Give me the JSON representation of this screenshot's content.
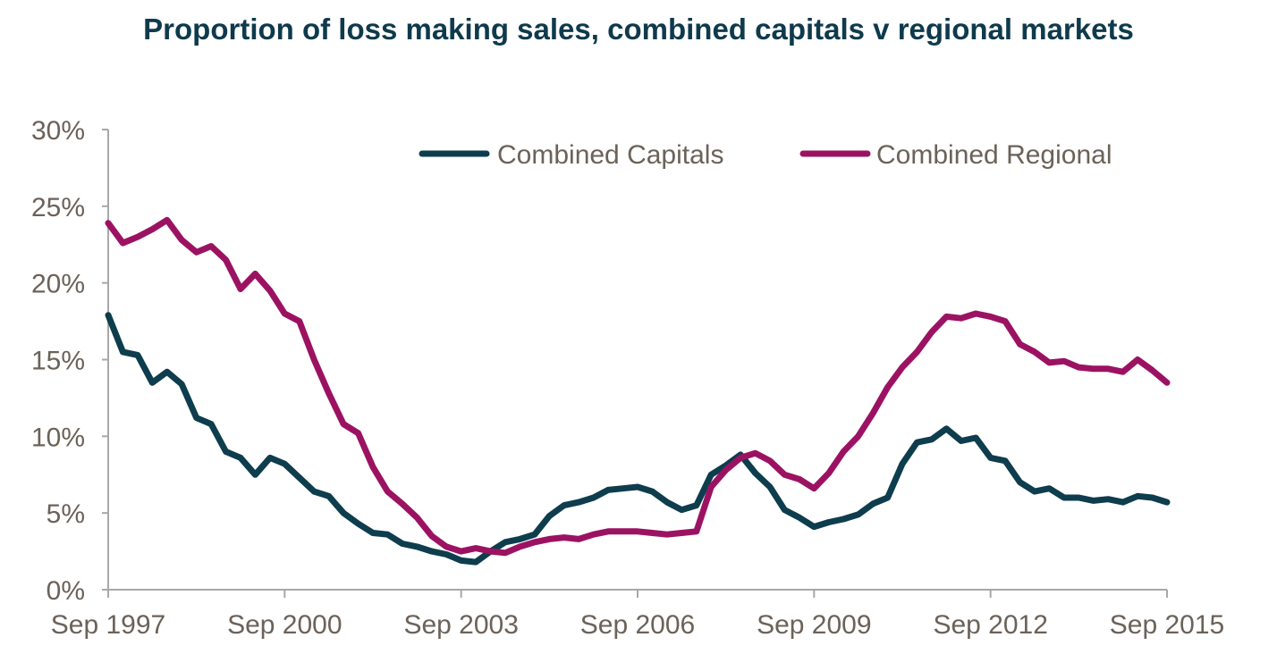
{
  "chart_data": {
    "type": "line",
    "title": "Proportion of loss making sales, combined capitals v regional markets",
    "xlabel": "",
    "ylabel": "",
    "x_range": [
      1997.75,
      2015.75
    ],
    "ylim": [
      0,
      30
    ],
    "y_ticks": [
      {
        "value": 0,
        "label": "0%"
      },
      {
        "value": 5,
        "label": "5%"
      },
      {
        "value": 10,
        "label": "10%"
      },
      {
        "value": 15,
        "label": "15%"
      },
      {
        "value": 20,
        "label": "20%"
      },
      {
        "value": 25,
        "label": "25%"
      },
      {
        "value": 30,
        "label": "30%"
      }
    ],
    "x_ticks": [
      {
        "value": 1997.75,
        "label": "Sep 1997"
      },
      {
        "value": 2000.75,
        "label": "Sep 2000"
      },
      {
        "value": 2003.75,
        "label": "Sep 2003"
      },
      {
        "value": 2006.75,
        "label": "Sep 2006"
      },
      {
        "value": 2009.75,
        "label": "Sep 2009"
      },
      {
        "value": 2012.75,
        "label": "Sep 2012"
      },
      {
        "value": 2015.75,
        "label": "Sep 2015"
      }
    ],
    "legend_position": "top-right",
    "series": [
      {
        "name": "Combined Capitals",
        "color": "#0e3d4d",
        "x": [
          1997.75,
          1998.0,
          1998.25,
          1998.5,
          1998.75,
          1999.0,
          1999.25,
          1999.5,
          1999.75,
          2000.0,
          2000.25,
          2000.5,
          2000.75,
          2001.0,
          2001.25,
          2001.5,
          2001.75,
          2002.0,
          2002.25,
          2002.5,
          2002.75,
          2003.0,
          2003.25,
          2003.5,
          2003.75,
          2004.0,
          2004.25,
          2004.5,
          2004.75,
          2005.0,
          2005.25,
          2005.5,
          2005.75,
          2006.0,
          2006.25,
          2006.5,
          2006.75,
          2007.0,
          2007.25,
          2007.5,
          2007.75,
          2008.0,
          2008.25,
          2008.5,
          2008.75,
          2009.0,
          2009.25,
          2009.5,
          2009.75,
          2010.0,
          2010.25,
          2010.5,
          2010.75,
          2011.0,
          2011.25,
          2011.5,
          2011.75,
          2012.0,
          2012.25,
          2012.5,
          2012.75,
          2013.0,
          2013.25,
          2013.5,
          2013.75,
          2014.0,
          2014.25,
          2014.5,
          2014.75,
          2015.0,
          2015.25,
          2015.5,
          2015.75
        ],
        "values": [
          17.9,
          15.5,
          15.3,
          13.5,
          14.2,
          13.4,
          11.2,
          10.8,
          9.0,
          8.6,
          7.5,
          8.6,
          8.2,
          7.3,
          6.4,
          6.1,
          5.0,
          4.3,
          3.7,
          3.6,
          3.0,
          2.8,
          2.5,
          2.3,
          1.9,
          1.8,
          2.5,
          3.1,
          3.3,
          3.6,
          4.8,
          5.5,
          5.7,
          6.0,
          6.5,
          6.6,
          6.7,
          6.4,
          5.7,
          5.2,
          5.5,
          7.5,
          8.1,
          8.8,
          7.6,
          6.7,
          5.2,
          4.7,
          4.1,
          4.4,
          4.6,
          4.9,
          5.6,
          6.0,
          8.2,
          9.6,
          9.8,
          10.5,
          9.7,
          9.9,
          8.6,
          8.4,
          7.0,
          6.4,
          6.6,
          6.0,
          6.0,
          5.8,
          5.9,
          5.7,
          6.1,
          6.0,
          5.7
        ]
      },
      {
        "name": "Combined Regional",
        "color": "#9c1262",
        "x": [
          1997.75,
          1998.0,
          1998.25,
          1998.5,
          1998.75,
          1999.0,
          1999.25,
          1999.5,
          1999.75,
          2000.0,
          2000.25,
          2000.5,
          2000.75,
          2001.0,
          2001.25,
          2001.5,
          2001.75,
          2002.0,
          2002.25,
          2002.5,
          2002.75,
          2003.0,
          2003.25,
          2003.5,
          2003.75,
          2004.0,
          2004.25,
          2004.5,
          2004.75,
          2005.0,
          2005.25,
          2005.5,
          2005.75,
          2006.0,
          2006.25,
          2006.5,
          2006.75,
          2007.0,
          2007.25,
          2007.5,
          2007.75,
          2008.0,
          2008.25,
          2008.5,
          2008.75,
          2009.0,
          2009.25,
          2009.5,
          2009.75,
          2010.0,
          2010.25,
          2010.5,
          2010.75,
          2011.0,
          2011.25,
          2011.5,
          2011.75,
          2012.0,
          2012.25,
          2012.5,
          2012.75,
          2013.0,
          2013.25,
          2013.5,
          2013.75,
          2014.0,
          2014.25,
          2014.5,
          2014.75,
          2015.0,
          2015.25,
          2015.5,
          2015.75
        ],
        "values": [
          23.9,
          22.6,
          23.0,
          23.5,
          24.1,
          22.8,
          22.0,
          22.4,
          21.5,
          19.6,
          20.6,
          19.5,
          18.0,
          17.5,
          15.0,
          12.8,
          10.8,
          10.2,
          8.0,
          6.4,
          5.6,
          4.7,
          3.5,
          2.8,
          2.5,
          2.7,
          2.5,
          2.4,
          2.8,
          3.1,
          3.3,
          3.4,
          3.3,
          3.6,
          3.8,
          3.8,
          3.8,
          3.7,
          3.6,
          3.7,
          3.8,
          6.7,
          7.8,
          8.6,
          8.9,
          8.4,
          7.5,
          7.2,
          6.6,
          7.6,
          9.0,
          10.0,
          11.5,
          13.2,
          14.5,
          15.5,
          16.8,
          17.8,
          17.7,
          18.0,
          17.8,
          17.5,
          16.0,
          15.5,
          14.8,
          14.9,
          14.5,
          14.4,
          14.4,
          14.2,
          15.0,
          14.3,
          13.5
        ]
      }
    ]
  }
}
